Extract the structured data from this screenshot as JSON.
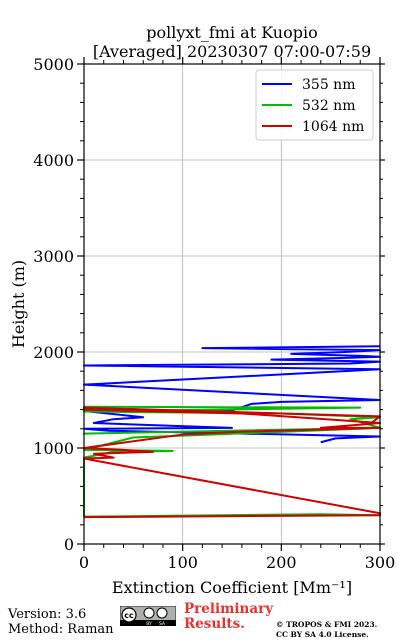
{
  "chart_data": {
    "type": "line",
    "title": "pollyxt_fmi at Kuopio",
    "subtitle": "[Averaged] 20230307 07:00-07:59",
    "xlabel": "Extinction Coefficient [Mm⁻¹]",
    "ylabel": "Height (m)",
    "xlim": [
      0,
      300
    ],
    "ylim": [
      0,
      5000
    ],
    "xticks": [
      0,
      100,
      200,
      300
    ],
    "yticks": [
      0,
      1000,
      2000,
      3000,
      4000,
      5000
    ],
    "grid": true,
    "legend_position": "top-right",
    "series": [
      {
        "name": "355 nm",
        "color": "#0000ff",
        "x": [
          240,
          255,
          300,
          25,
          0,
          150,
          10,
          30,
          60,
          5,
          150,
          170,
          200,
          300,
          0,
          300,
          0,
          270,
          300,
          190,
          270,
          300,
          280,
          210,
          265,
          300,
          120,
          300
        ],
        "y": [
          1060,
          1100,
          1120,
          1180,
          1200,
          1210,
          1260,
          1300,
          1320,
          1380,
          1390,
          1460,
          1480,
          1500,
          1660,
          1820,
          1860,
          1880,
          1900,
          1920,
          1940,
          1950,
          1960,
          1980,
          2000,
          2020,
          2040,
          2060
        ]
      },
      {
        "name": "532 nm",
        "color": "#00bb00",
        "x": [
          300,
          240,
          0,
          0,
          30,
          90,
          0,
          50,
          180,
          300,
          0,
          300,
          270,
          300,
          200,
          0,
          70,
          280,
          0
        ],
        "y": [
          300,
          310,
          285,
          900,
          960,
          970,
          980,
          1110,
          1160,
          1210,
          1150,
          1210,
          1300,
          1320,
          1360,
          1380,
          1390,
          1420,
          1430
        ]
      },
      {
        "name": "1064 nm",
        "color": "#cc0000",
        "x": [
          0,
          300,
          300,
          0,
          30,
          10,
          70,
          40,
          0,
          100,
          160,
          300,
          240,
          300,
          160,
          0,
          0,
          300,
          290
        ],
        "y": [
          280,
          300,
          320,
          890,
          900,
          940,
          960,
          980,
          1000,
          1140,
          1170,
          1210,
          1210,
          1260,
          1360,
          1400,
          1420,
          1330,
          1250
        ]
      }
    ]
  },
  "footer": {
    "version": "Version: 3.6",
    "method": "Method: Raman",
    "preliminary_line1": "Preliminary",
    "preliminary_line2": "Results.",
    "copyright_line1": "© TROPOS & FMI 2023.",
    "copyright_line2": "CC BY SA 4.0 License."
  },
  "badge": {
    "cc": "cc",
    "by": "BY",
    "sa": "SA"
  }
}
